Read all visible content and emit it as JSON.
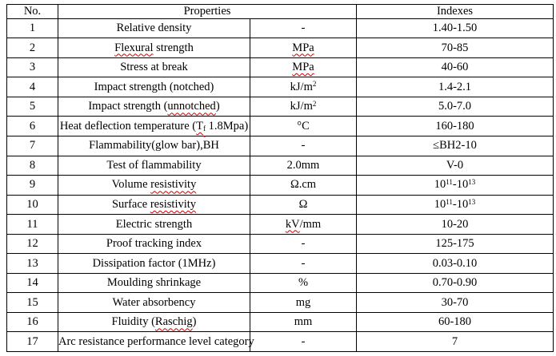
{
  "colors": {
    "text": "#000000",
    "table_border": "#000000",
    "spellcheck_squiggle": "#cc0000",
    "background": "#ffffff"
  },
  "table": {
    "headers": {
      "no": "No.",
      "properties": "Properties",
      "indexes": "Indexes"
    },
    "rows": [
      {
        "no": "1",
        "property": [
          {
            "t": "Relative density"
          }
        ],
        "unit": [
          {
            "t": "-"
          }
        ],
        "index": [
          {
            "t": "1.40-1.50"
          }
        ]
      },
      {
        "no": "2",
        "property": [
          {
            "t": "Flexural",
            "wavy": true
          },
          {
            "t": " strength"
          }
        ],
        "unit": [
          {
            "t": "MPa",
            "wavy": true
          }
        ],
        "index": [
          {
            "t": "70-85"
          }
        ]
      },
      {
        "no": "3",
        "property": [
          {
            "t": "Stress at break"
          }
        ],
        "unit": [
          {
            "t": "MPa",
            "wavy": true
          }
        ],
        "index": [
          {
            "t": "40-60"
          }
        ]
      },
      {
        "no": "4",
        "property": [
          {
            "t": "Impact strength (notched)"
          }
        ],
        "unit": [
          {
            "t": "kJ/m"
          },
          {
            "t": "2",
            "sup": true
          }
        ],
        "index": [
          {
            "t": "1.4-2.1"
          }
        ]
      },
      {
        "no": "5",
        "property": [
          {
            "t": "Impact strength ("
          },
          {
            "t": "unnotched",
            "wavy": true
          },
          {
            "t": ")"
          }
        ],
        "unit": [
          {
            "t": "kJ/m"
          },
          {
            "t": "2",
            "sup": true
          }
        ],
        "index": [
          {
            "t": "5.0-7.0"
          }
        ]
      },
      {
        "no": "6",
        "property": [
          {
            "t": "Heat deflection temperature ("
          },
          {
            "t": "T",
            "wavy": true
          },
          {
            "t": "f",
            "sub": true,
            "wavy": true
          },
          {
            "t": " 1.8Mpa)"
          }
        ],
        "unit": [
          {
            "t": "°C"
          }
        ],
        "index": [
          {
            "t": "160-180"
          }
        ]
      },
      {
        "no": "7",
        "property": [
          {
            "t": "Flammability(glow bar),BH"
          }
        ],
        "unit": [
          {
            "t": "-"
          }
        ],
        "index": [
          {
            "t": "≤BH2-10"
          }
        ]
      },
      {
        "no": "8",
        "property": [
          {
            "t": "Test of flammability"
          }
        ],
        "unit": [
          {
            "t": "2.0mm"
          }
        ],
        "index": [
          {
            "t": "V-0"
          }
        ]
      },
      {
        "no": "9",
        "property": [
          {
            "t": "Volume "
          },
          {
            "t": "resistivity",
            "wavy": true
          }
        ],
        "unit": [
          {
            "t": "Ω.cm"
          }
        ],
        "index": [
          {
            "t": "10"
          },
          {
            "t": "11",
            "sup": true
          },
          {
            "t": "-10"
          },
          {
            "t": "13",
            "sup": true
          }
        ]
      },
      {
        "no": "10",
        "property": [
          {
            "t": "Surface "
          },
          {
            "t": "resistivity",
            "wavy": true
          }
        ],
        "unit": [
          {
            "t": "Ω"
          }
        ],
        "index": [
          {
            "t": "10"
          },
          {
            "t": "11",
            "sup": true
          },
          {
            "t": "-10"
          },
          {
            "t": "13",
            "sup": true
          }
        ]
      },
      {
        "no": "11",
        "property": [
          {
            "t": "Electric strength"
          }
        ],
        "unit": [
          {
            "t": "kV",
            "wavy": true
          },
          {
            "t": "/mm"
          }
        ],
        "index": [
          {
            "t": "10-20"
          }
        ]
      },
      {
        "no": "12",
        "property": [
          {
            "t": "Proof tracking index"
          }
        ],
        "unit": [
          {
            "t": "-"
          }
        ],
        "index": [
          {
            "t": "125-175"
          }
        ]
      },
      {
        "no": "13",
        "property": [
          {
            "t": "Dissipation factor (1MHz)"
          }
        ],
        "unit": [
          {
            "t": "-"
          }
        ],
        "index": [
          {
            "t": "0.03-0.10"
          }
        ]
      },
      {
        "no": "14",
        "property": [
          {
            "t": "Moulding shrinkage"
          }
        ],
        "unit": [
          {
            "t": "%"
          }
        ],
        "index": [
          {
            "t": "0.70-0.90"
          }
        ]
      },
      {
        "no": "15",
        "property": [
          {
            "t": "Water absorbency"
          }
        ],
        "unit": [
          {
            "t": "mg"
          }
        ],
        "index": [
          {
            "t": "30-70"
          }
        ]
      },
      {
        "no": "16",
        "property": [
          {
            "t": "Fluidity ("
          },
          {
            "t": "Raschig",
            "wavy": true
          },
          {
            "t": ")"
          }
        ],
        "unit": [
          {
            "t": "mm"
          }
        ],
        "index": [
          {
            "t": "60-180"
          }
        ]
      },
      {
        "no": "17",
        "property": [
          {
            "t": "Arc resistance performance level category"
          }
        ],
        "unit": [
          {
            "t": "-"
          }
        ],
        "index": [
          {
            "t": "7"
          }
        ],
        "index_valign": "top"
      }
    ]
  }
}
